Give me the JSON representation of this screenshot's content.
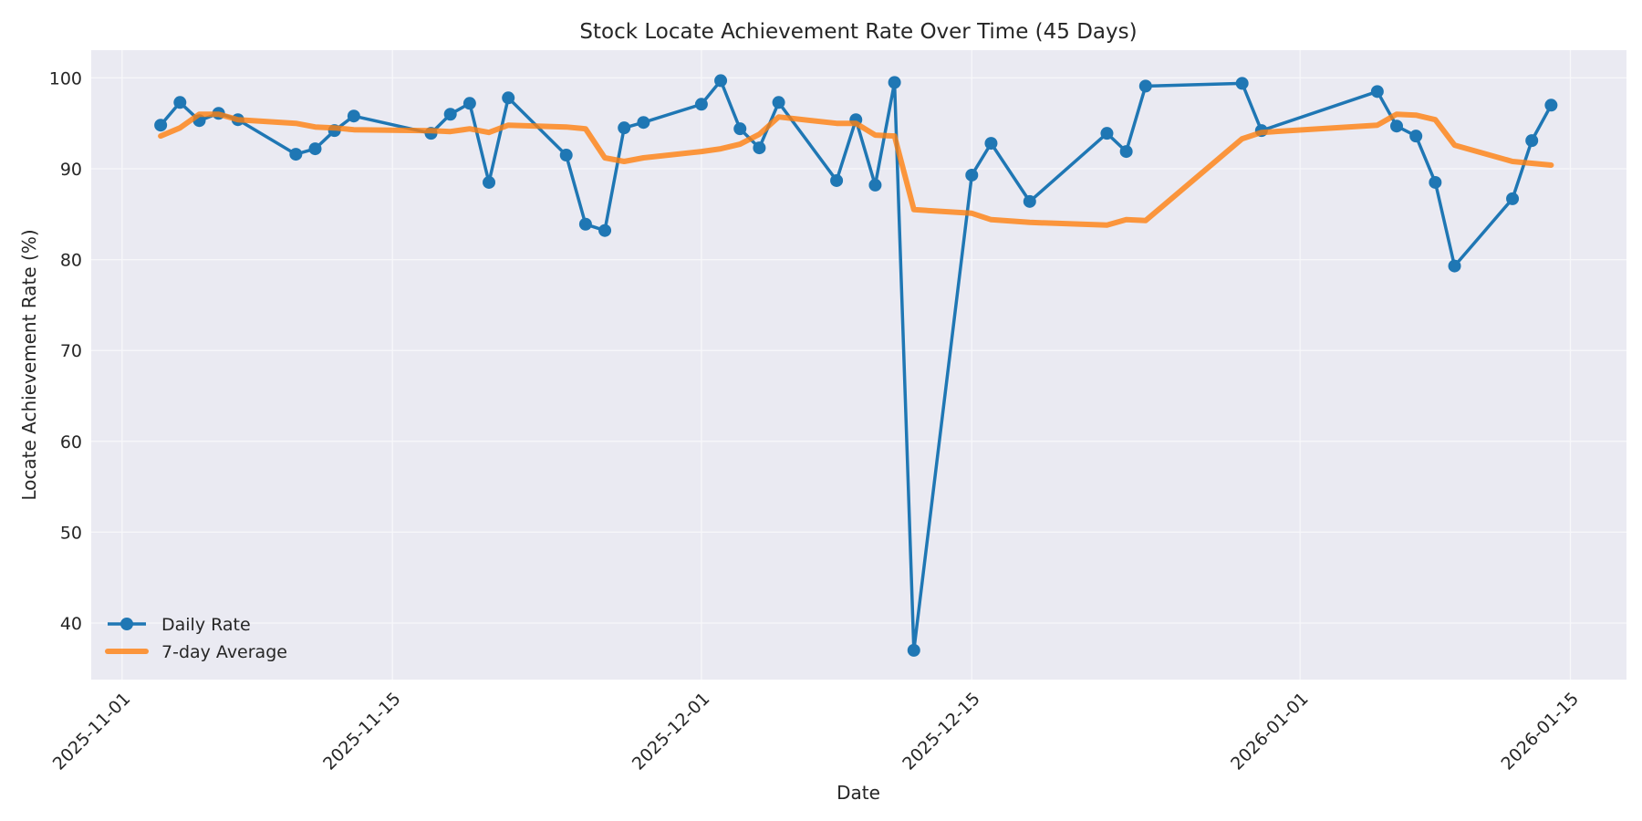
{
  "chart_data": {
    "type": "line",
    "title": "Stock Locate Achievement Rate Over Time (45 Days)",
    "xlabel": "Date",
    "ylabel": "Locate Achievement Rate (%)",
    "ylim": [
      34,
      103
    ],
    "yticks": [
      40,
      50,
      60,
      70,
      80,
      90,
      100
    ],
    "xticks": [
      "2025-11-01",
      "2025-11-15",
      "2025-12-01",
      "2025-12-15",
      "2026-01-01",
      "2026-01-15"
    ],
    "grid": true,
    "legend_position": "lower left",
    "x": [
      "2025-11-03",
      "2025-11-04",
      "2025-11-05",
      "2025-11-06",
      "2025-11-07",
      "2025-11-10",
      "2025-11-11",
      "2025-11-12",
      "2025-11-13",
      "2025-11-17",
      "2025-11-18",
      "2025-11-19",
      "2025-11-20",
      "2025-11-21",
      "2025-11-24",
      "2025-11-25",
      "2025-11-26",
      "2025-11-27",
      "2025-11-28",
      "2025-12-01",
      "2025-12-02",
      "2025-12-03",
      "2025-12-04",
      "2025-12-05",
      "2025-12-08",
      "2025-12-09",
      "2025-12-10",
      "2025-12-11",
      "2025-12-12",
      "2025-12-15",
      "2025-12-16",
      "2025-12-18",
      "2025-12-22",
      "2025-12-23",
      "2025-12-24",
      "2025-12-29",
      "2025-12-30",
      "2026-01-05",
      "2026-01-06",
      "2026-01-07",
      "2026-01-08",
      "2026-01-09",
      "2026-01-12",
      "2026-01-13",
      "2026-01-14"
    ],
    "series": [
      {
        "name": "Daily Rate",
        "color": "#1f77b4",
        "marker": "circle",
        "values": [
          94.8,
          97.3,
          95.3,
          96.1,
          95.4,
          91.6,
          92.2,
          94.2,
          95.8,
          93.9,
          96.0,
          97.2,
          88.5,
          97.8,
          91.5,
          83.9,
          83.2,
          94.5,
          95.1,
          97.1,
          99.7,
          94.4,
          92.3,
          97.3,
          88.7,
          95.4,
          88.2,
          99.5,
          37.0,
          89.3,
          92.8,
          86.4,
          93.9,
          91.9,
          99.1,
          99.4,
          94.2,
          98.5,
          94.7,
          93.6,
          88.5,
          79.3,
          86.7,
          93.1,
          97.0
        ]
      },
      {
        "name": "7-day Average",
        "color": "#ff7f0e",
        "marker": "none",
        "values": [
          93.6,
          94.5,
          96.0,
          96.0,
          95.4,
          95.0,
          94.6,
          94.5,
          94.3,
          94.2,
          94.1,
          94.4,
          94.0,
          94.8,
          94.6,
          94.4,
          91.2,
          90.8,
          91.2,
          91.9,
          92.2,
          92.7,
          93.8,
          95.7,
          95.0,
          95.0,
          93.7,
          93.6,
          85.5,
          85.1,
          84.4,
          84.1,
          83.8,
          84.4,
          84.3,
          93.3,
          94.0,
          94.8,
          96.0,
          95.9,
          95.4,
          92.6,
          90.8,
          90.6,
          90.4
        ]
      }
    ]
  },
  "colors": {
    "plot_background": "#eaeaf2",
    "grid": "#f4f4f8",
    "daily": "#1f77b4",
    "average": "#ff7f0e"
  }
}
